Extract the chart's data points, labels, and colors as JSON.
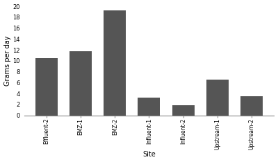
{
  "categories": [
    "Effluent-2",
    "EMZ-1",
    "EMZ-2",
    "Influent-1",
    "Influent-2",
    "Upstream-1",
    "Upstream-2"
  ],
  "values": [
    10.5,
    11.7,
    19.3,
    3.2,
    1.85,
    6.6,
    3.5
  ],
  "bar_color": "#555555",
  "xlabel": "Site",
  "ylabel": "Grams per day",
  "ylim": [
    0,
    20
  ],
  "yticks": [
    0,
    2,
    4,
    6,
    8,
    10,
    12,
    14,
    16,
    18,
    20
  ],
  "background_color": "#ffffff",
  "edge_color": "none"
}
